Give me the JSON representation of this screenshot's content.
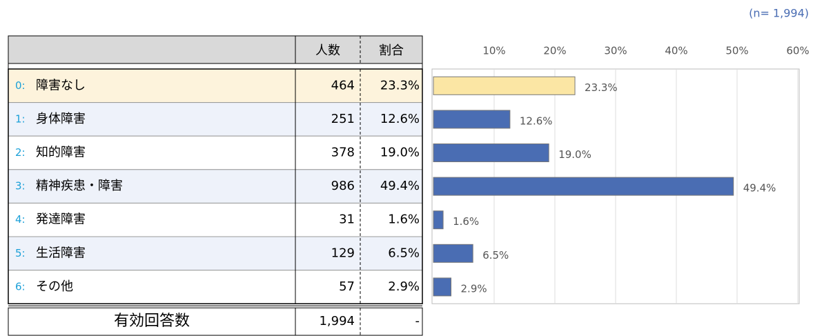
{
  "note": "(n= 1,994)",
  "table": {
    "headers": [
      "人数",
      "割合"
    ],
    "rows": [
      {
        "code": "0:",
        "label": "障害なし",
        "count": 464,
        "share": "23.3%"
      },
      {
        "code": "1:",
        "label": "身体障害",
        "count": 251,
        "share": "12.6%"
      },
      {
        "code": "2:",
        "label": "知的障害",
        "count": 378,
        "share": "19.0%"
      },
      {
        "code": "3:",
        "label": "精神疾患・障害",
        "count": 986,
        "share": "49.4%"
      },
      {
        "code": "4:",
        "label": "発達障害",
        "count": 31,
        "share": "1.6%"
      },
      {
        "code": "5:",
        "label": "生活障害",
        "count": 129,
        "share": "6.5%"
      },
      {
        "code": "6:",
        "label": "その他",
        "count": 57,
        "share": "2.9%"
      }
    ],
    "total": {
      "label": "有効回答数",
      "count": {
        "value": 1994,
        "label": "1,994"
      },
      "share": "-"
    }
  },
  "chart_data": {
    "type": "hbar",
    "values": [
      23.3,
      12.6,
      19.0,
      49.4,
      1.6,
      6.5,
      2.9
    ],
    "value_labels": [
      "23.3%",
      "12.6%",
      "19.0%",
      "49.4%",
      "1.6%",
      "6.5%",
      "2.9%"
    ],
    "colors": [
      "#fbe6a4",
      "#4a6db3",
      "#4a6db3",
      "#4a6db3",
      "#4a6db3",
      "#4a6db3",
      "#4a6db3"
    ],
    "xlim": [
      0,
      60
    ],
    "xticks": [
      {
        "value": 10,
        "label": "10%"
      },
      {
        "value": 20,
        "label": "20%"
      },
      {
        "value": 30,
        "label": "30%"
      },
      {
        "value": 40,
        "label": "40%"
      },
      {
        "value": 50,
        "label": "50%"
      },
      {
        "value": 60,
        "label": "60%"
      }
    ],
    "grid": true
  }
}
